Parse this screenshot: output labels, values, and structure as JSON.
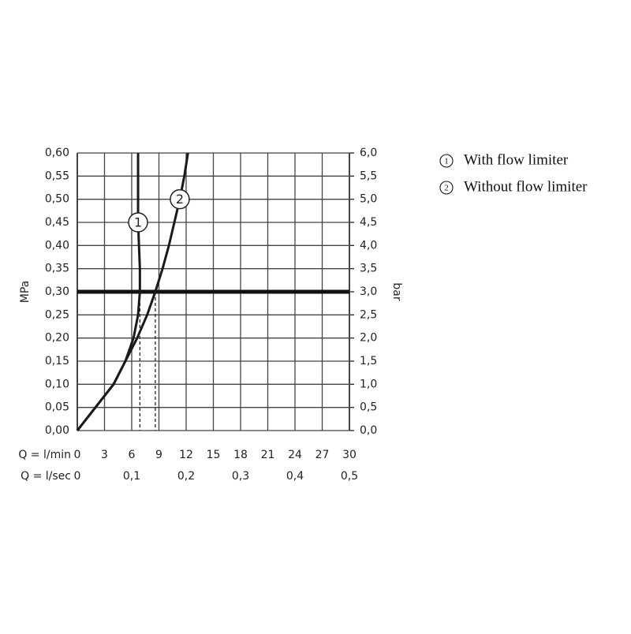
{
  "chart_data": {
    "type": "line",
    "y_label": "MPa",
    "y2_label": "bar",
    "x_label": "Q = l/min",
    "x2_label": "Q = l/sec",
    "xlim": [
      0,
      30
    ],
    "xticks": [
      0,
      3,
      6,
      9,
      12,
      15,
      18,
      21,
      24,
      27,
      30
    ],
    "x2lim": [
      0,
      0.5
    ],
    "x2ticks": [
      0,
      {
        "value": 0.1,
        "label": "0,1"
      },
      {
        "value": 0.2,
        "label": "0,2"
      },
      {
        "value": 0.3,
        "label": "0,3"
      },
      {
        "value": 0.4,
        "label": "0,4"
      },
      {
        "value": 0.5,
        "label": "0,5"
      }
    ],
    "ylim": [
      0,
      0.6
    ],
    "yticks": [
      {
        "value": 0,
        "label": "0,00"
      },
      {
        "value": 0.05,
        "label": "0,05"
      },
      {
        "value": 0.1,
        "label": "0,10"
      },
      {
        "value": 0.15,
        "label": "0,15"
      },
      {
        "value": 0.2,
        "label": "0,20"
      },
      {
        "value": 0.25,
        "label": "0,25"
      },
      {
        "value": 0.3,
        "label": "0,30"
      },
      {
        "value": 0.35,
        "label": "0,35"
      },
      {
        "value": 0.4,
        "label": "0,40"
      },
      {
        "value": 0.45,
        "label": "0,45"
      },
      {
        "value": 0.5,
        "label": "0,50"
      },
      {
        "value": 0.55,
        "label": "0,55"
      },
      {
        "value": 0.6,
        "label": "0,60"
      }
    ],
    "y2lim": [
      0,
      6
    ],
    "y2ticks": [
      {
        "value": 0,
        "label": "0,0"
      },
      {
        "value": 0.5,
        "label": "0,5"
      },
      {
        "value": 1,
        "label": "1,0"
      },
      {
        "value": 1.5,
        "label": "1,5"
      },
      {
        "value": 2,
        "label": "2,0"
      },
      {
        "value": 2.5,
        "label": "2,5"
      },
      {
        "value": 3,
        "label": "3,0"
      },
      {
        "value": 3.5,
        "label": "3,5"
      },
      {
        "value": 4,
        "label": "4,0"
      },
      {
        "value": 4.5,
        "label": "4,5"
      },
      {
        "value": 5,
        "label": "5,0"
      },
      {
        "value": 5.5,
        "label": "5,5"
      },
      {
        "value": 6,
        "label": "6,0"
      }
    ],
    "grid": true,
    "highlight_y": 0.3,
    "series": [
      {
        "name": "With flow limiter",
        "marker": "1",
        "color": "#1a1a1a",
        "x": [
          0,
          2,
          4,
          5.3,
          6.2,
          6.7,
          6.9,
          6.9,
          6.8,
          6.7,
          6.7,
          6.7,
          6.7
        ],
        "values": [
          0,
          0.05,
          0.1,
          0.15,
          0.2,
          0.25,
          0.3,
          0.35,
          0.4,
          0.45,
          0.5,
          0.55,
          0.6
        ]
      },
      {
        "name": "Without flow limiter",
        "marker": "2",
        "color": "#1a1a1a",
        "x": [
          0,
          2,
          4,
          5.3,
          6.6,
          7.7,
          8.6,
          9.4,
          10.1,
          10.7,
          11.3,
          11.8,
          12.2
        ],
        "values": [
          0,
          0.05,
          0.1,
          0.15,
          0.2,
          0.25,
          0.3,
          0.35,
          0.4,
          0.45,
          0.5,
          0.55,
          0.6
        ]
      }
    ]
  }
}
